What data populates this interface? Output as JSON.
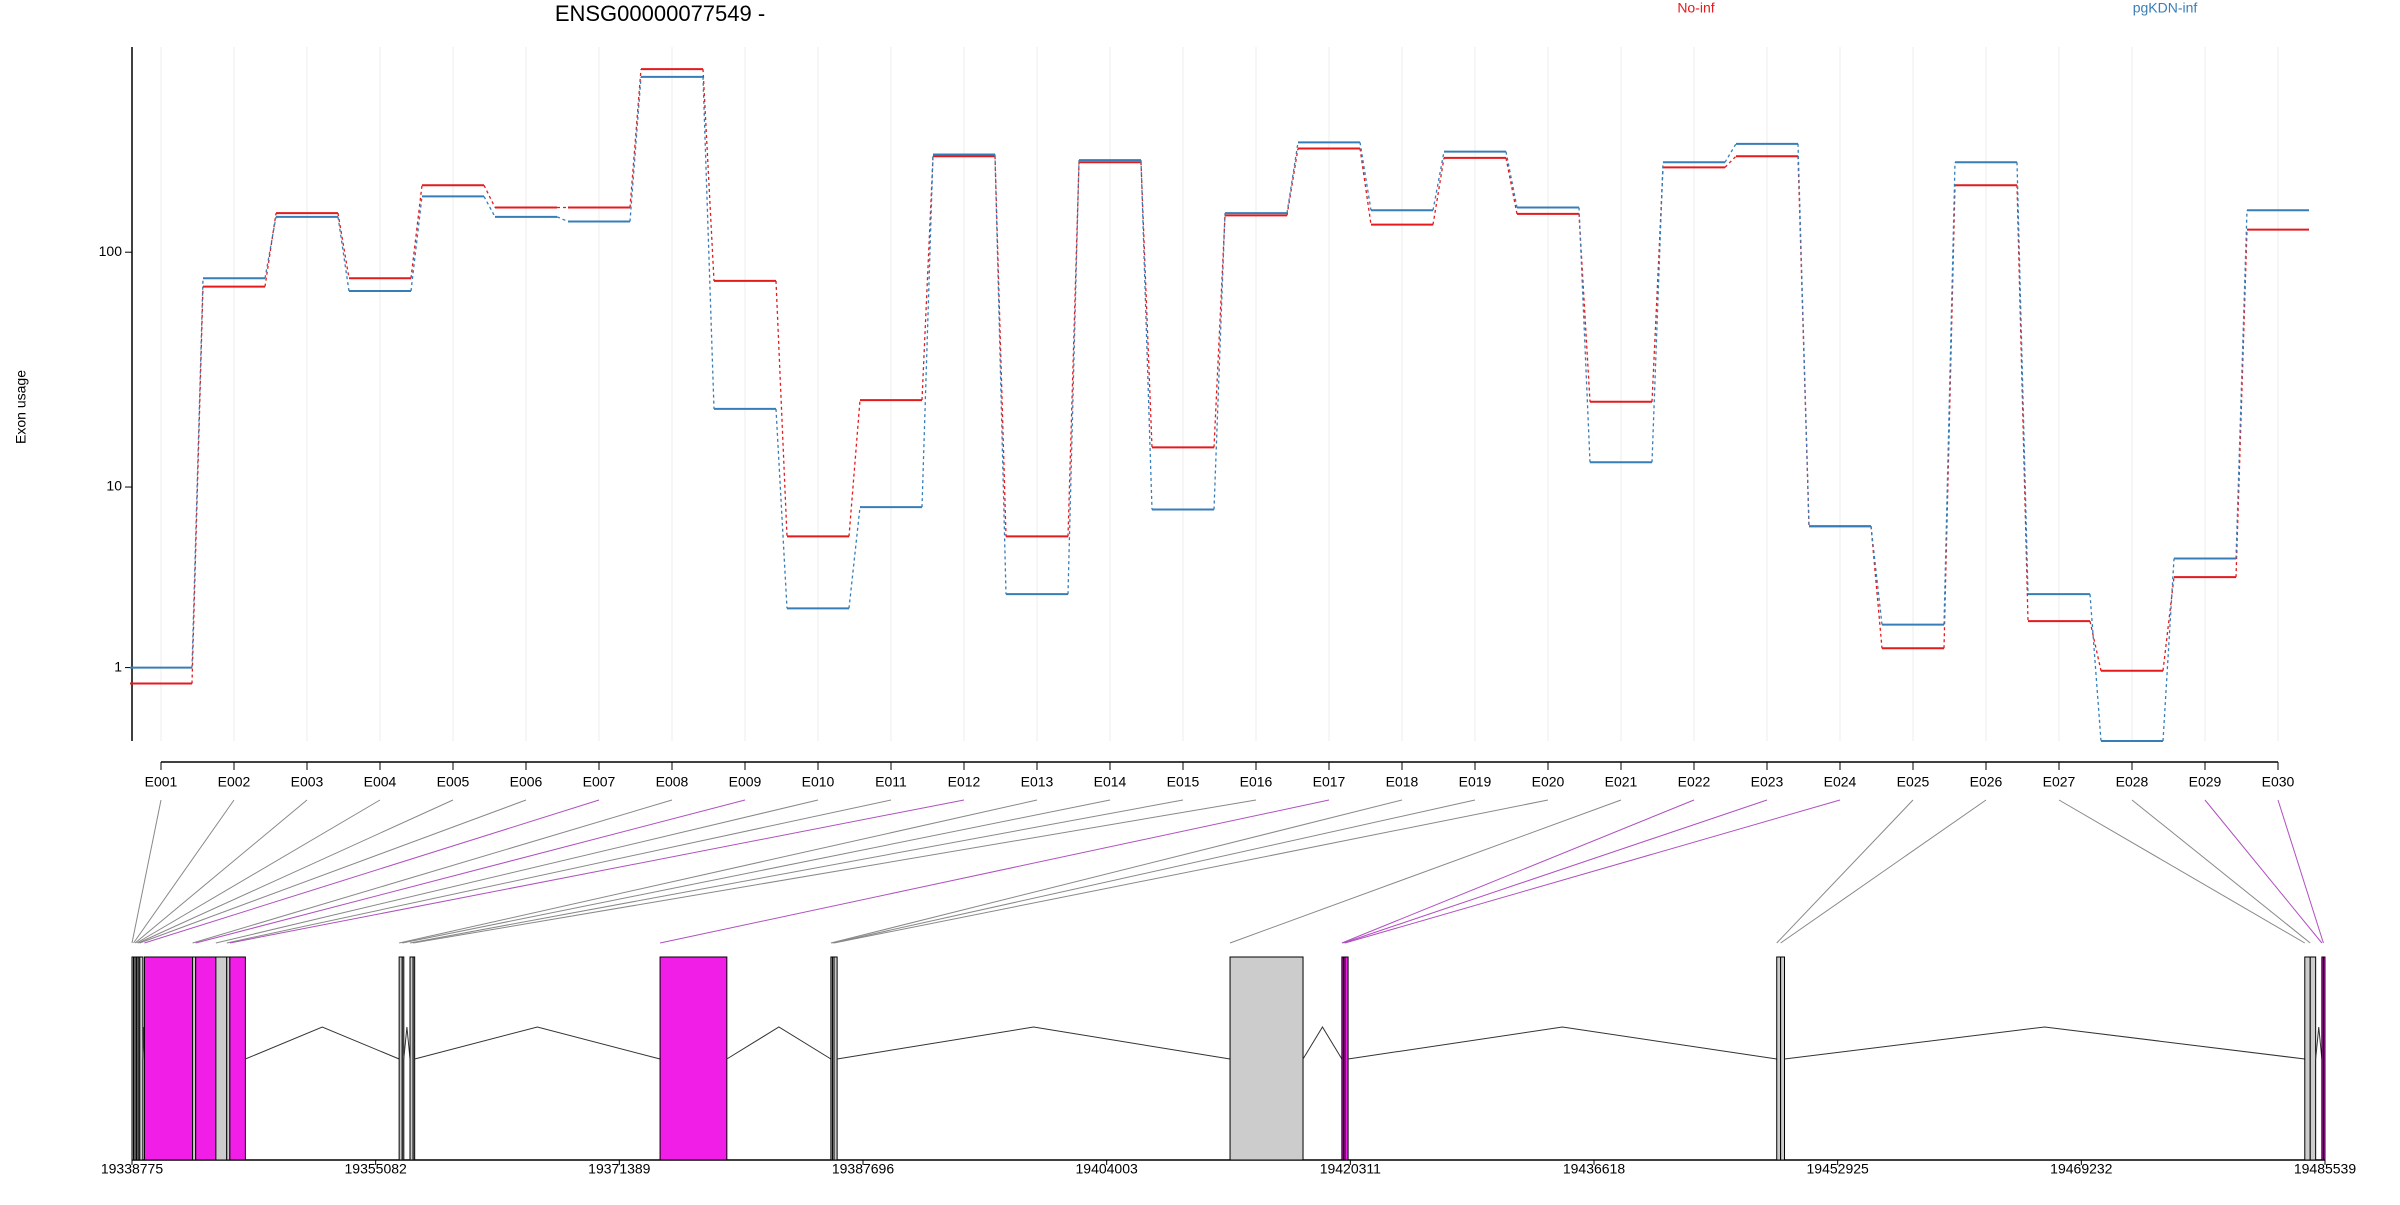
{
  "chart_data": [
    {
      "type": "line",
      "title": "ENSG00000077549 -",
      "ylabel": "Exon usage",
      "categories": [
        "E001",
        "E002",
        "E003",
        "E004",
        "E005",
        "E006",
        "E007",
        "E008",
        "E009",
        "E010",
        "E011",
        "E012",
        "E013",
        "E014",
        "E015",
        "E016",
        "E017",
        "E018",
        "E019",
        "E020",
        "E021",
        "E022",
        "E023",
        "E024",
        "E025",
        "E026",
        "E027",
        "E028",
        "E029",
        "E030"
      ],
      "series": [
        {
          "name": "No-inf",
          "color": "#e41a1c",
          "values": [
            0.72,
            72,
            145,
            78,
            189,
            153,
            153,
            568,
            76,
            5.9,
            24,
            249,
            5.9,
            235,
            15,
            142,
            268,
            130,
            245,
            144,
            23.6,
            224,
            249,
            6.6,
            1.4,
            189,
            2.1,
            0.94,
            3.7,
            124
          ]
        },
        {
          "name": "pgKDN-inf",
          "color": "#377eb8",
          "values": [
            1.0,
            78,
            140,
            69,
            170,
            140,
            134,
            528,
            22,
            2.5,
            8.1,
            253,
            3.0,
            240,
            7.9,
            145,
            284,
            149,
            260,
            153,
            12.9,
            235,
            280,
            6.6,
            2.0,
            235,
            3.0,
            0,
            4.6,
            149
          ]
        }
      ],
      "ylim": [
        0,
        700
      ],
      "yticks": [
        1,
        10,
        100
      ],
      "yscale": "log1p",
      "grid": true,
      "legend": "top-right"
    },
    {
      "type": "gene_model",
      "exon_start": [
        19338775,
        19338879,
        19338983,
        19339087,
        19339191,
        19339295,
        19339607,
        19342829,
        19343037,
        19344388,
        19345116,
        19345323,
        19356653,
        19356861,
        19357381,
        19357589,
        19374115,
        19385548,
        19385652,
        19385756,
        19412260,
        19419744,
        19419848,
        19419952,
        19448847,
        19449107,
        19484186,
        19484550,
        19485329,
        19485433
      ],
      "exon_end": [
        19338879,
        19338983,
        19339087,
        19339191,
        19339295,
        19339503,
        19342829,
        19343037,
        19344388,
        19345116,
        19345323,
        19346363,
        19356861,
        19356965,
        19357589,
        19357693,
        19378584,
        19385652,
        19385756,
        19385964,
        19417145,
        19419848,
        19419952,
        19420160,
        19449107,
        19449367,
        19484550,
        19484914,
        19485433,
        19485537
      ],
      "exon_colors": [
        "#cccccc",
        "#cccccc",
        "#cccccc",
        "#cccccc",
        "#cccccc",
        "#cccccc",
        "#f01ee6",
        "#cccccc",
        "#f01ee6",
        "#cccccc",
        "#cccccc",
        "#f01ee6",
        "#cccccc",
        "#cccccc",
        "#cccccc",
        "#cccccc",
        "#f01ee6",
        "#cccccc",
        "#cccccc",
        "#cccccc",
        "#cccccc",
        "#f01ee6",
        "#f01ee6",
        "#f01ee6",
        "#cccccc",
        "#cccccc",
        "#cccccc",
        "#cccccc",
        "#f01ee6",
        "#f01ee6"
      ],
      "xlim": [
        19338775,
        19485539
      ],
      "xticks": [
        19338775,
        19355082,
        19371389,
        19387696,
        19404003,
        19420311,
        19436618,
        19452925,
        19469232,
        19485539
      ]
    }
  ]
}
